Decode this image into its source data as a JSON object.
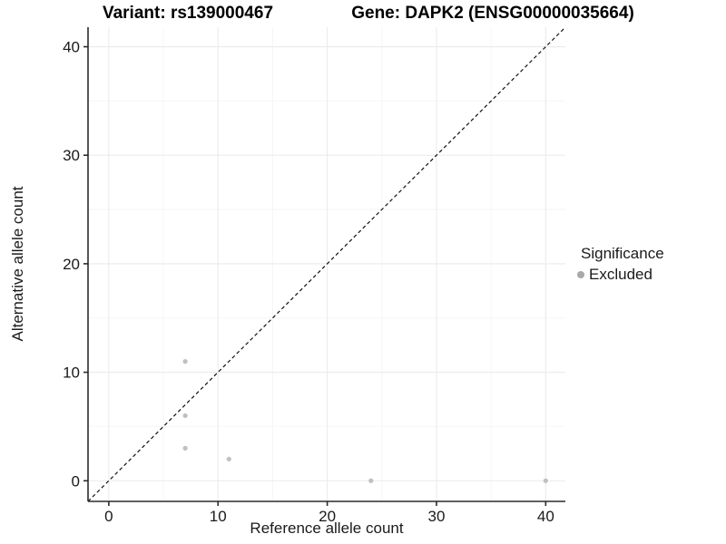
{
  "chart_data": {
    "type": "scatter",
    "title_variant": "Variant: rs139000467",
    "title_gene": "Gene: DAPK2 (ENSG00000035664)",
    "xlabel": "Reference allele count",
    "ylabel": "Alternative allele count",
    "xlim": [
      -1.9,
      41.8
    ],
    "ylim": [
      -1.9,
      41.8
    ],
    "x_ticks": [
      0,
      10,
      20,
      30,
      40
    ],
    "y_ticks": [
      0,
      10,
      20,
      30,
      40
    ],
    "x_minor_ticks": [
      5,
      15,
      25,
      35
    ],
    "y_minor_ticks": [
      5,
      15,
      25,
      35
    ],
    "grid": true,
    "identity_line": {
      "style": "dashed",
      "slope": 1,
      "intercept": 0
    },
    "series": [
      {
        "name": "Excluded",
        "color": "#c0c0c0",
        "points": [
          {
            "x": 7,
            "y": 11
          },
          {
            "x": 7,
            "y": 6
          },
          {
            "x": 7,
            "y": 3
          },
          {
            "x": 11,
            "y": 2
          },
          {
            "x": 24,
            "y": 0
          },
          {
            "x": 40,
            "y": 0
          }
        ]
      }
    ],
    "legend": {
      "position": "right",
      "title": "Significance",
      "items": [
        {
          "label": "Excluded",
          "color": "#a8a8a8"
        }
      ]
    }
  },
  "colors": {
    "background": "#ffffff",
    "grid_major": "#ebebeb",
    "grid_minor": "#f6f6f6",
    "axis_line": "#2b2b2b",
    "tick_label": "#1a1a1a",
    "dashed_line": "#111111"
  }
}
